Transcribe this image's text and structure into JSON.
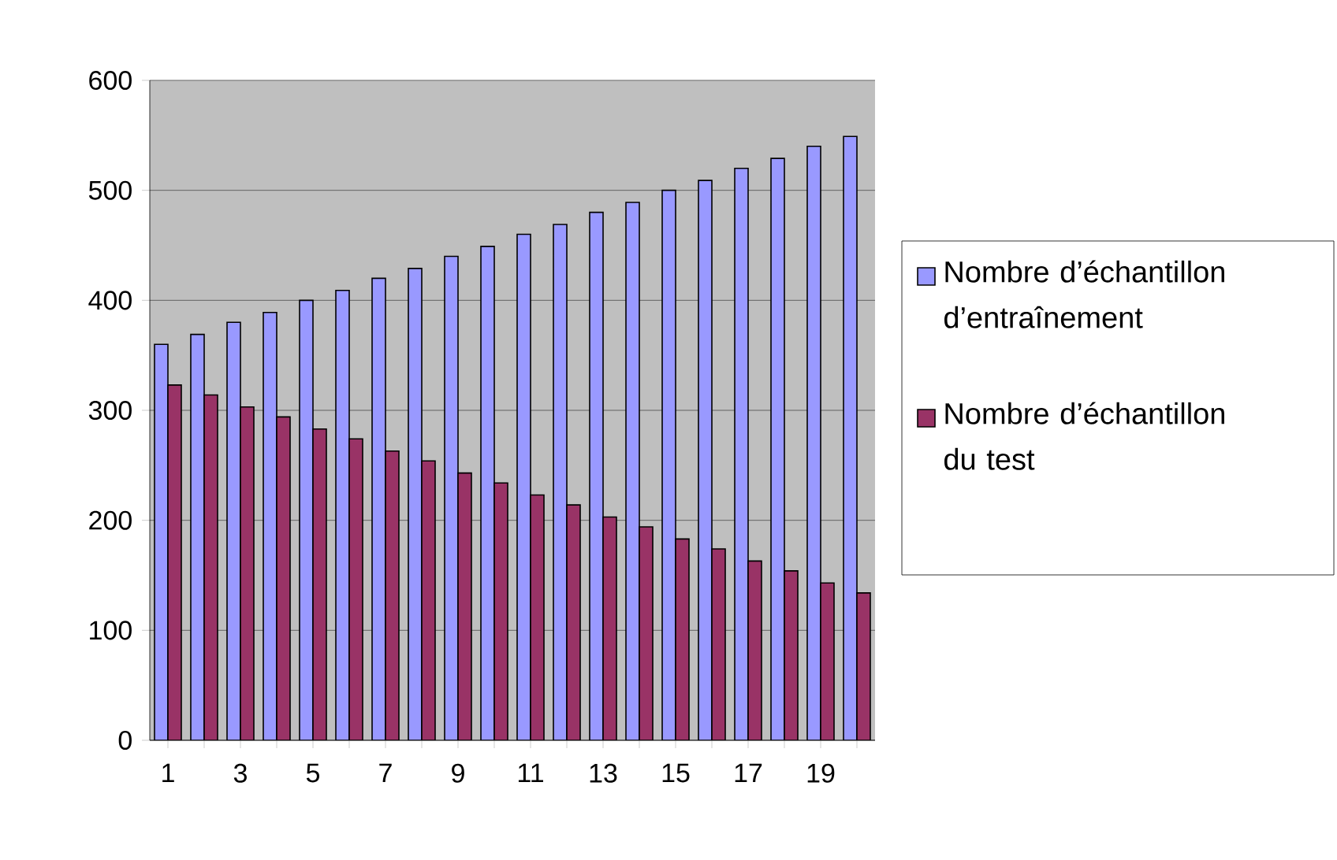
{
  "chart_data": {
    "type": "bar",
    "categories": [
      "1",
      null,
      "3",
      null,
      "5",
      null,
      "7",
      null,
      "9",
      null,
      "11",
      null,
      "13",
      null,
      "15",
      null,
      "17",
      null,
      "19",
      null
    ],
    "series": [
      {
        "name": "Nombre d’échantillon d’entraînement",
        "color": "#9999ff",
        "values": [
          360,
          369,
          380,
          389,
          400,
          409,
          420,
          429,
          440,
          449,
          460,
          469,
          480,
          489,
          500,
          509,
          520,
          529,
          540,
          549
        ]
      },
      {
        "name": "Nombre d’échantillon du test",
        "color": "#993366",
        "values": [
          323,
          314,
          303,
          294,
          283,
          274,
          263,
          254,
          243,
          234,
          223,
          214,
          203,
          194,
          183,
          174,
          163,
          154,
          143,
          134
        ]
      }
    ],
    "ylim": [
      0,
      600
    ],
    "yticks": [
      0,
      100,
      200,
      300,
      400,
      500,
      600
    ],
    "grid": "y",
    "legend": "right"
  }
}
